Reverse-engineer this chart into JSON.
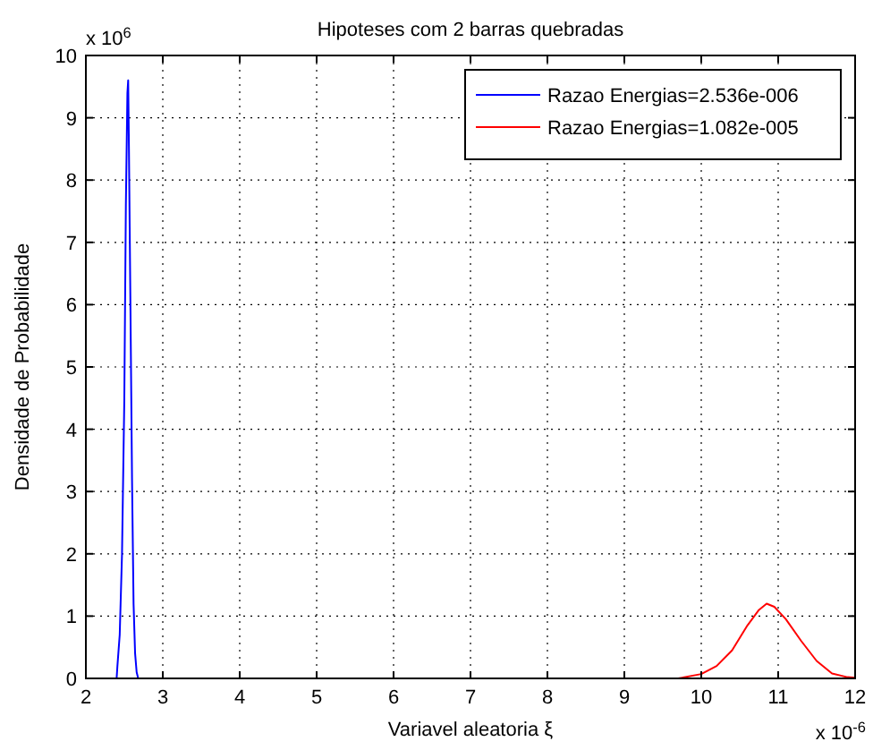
{
  "chart_data": {
    "type": "line",
    "title": "Hipoteses com 2 barras quebradas",
    "xlabel": "Variavel aleatoria ξ",
    "ylabel": "Densidade de Probabilidade",
    "annotations": [
      "x 10$^{6}$",
      "x 10$^{-6}$"
    ],
    "xlim": [
      2,
      12
    ],
    "xticks": [
      2,
      3,
      4,
      5,
      6,
      7,
      8,
      9,
      10,
      11,
      12
    ],
    "ylim": [
      0,
      10
    ],
    "yticks": [
      0,
      1,
      2,
      3,
      4,
      5,
      6,
      7,
      8,
      9,
      10
    ],
    "grid": true,
    "legend": "top right",
    "line_style": "solid",
    "series": [
      {
        "name": "Razao Energias=2.536e-006",
        "color": "#0000ff",
        "x": [
          2.4,
          2.41,
          2.44,
          2.47,
          2.5,
          2.52,
          2.54,
          2.55,
          2.56,
          2.58,
          2.6,
          2.62,
          2.64,
          2.66,
          2.68
        ],
        "values": [
          0,
          0.2,
          0.7,
          2.0,
          4.5,
          7.6,
          9.4,
          9.6,
          8.5,
          5.9,
          3.2,
          1.2,
          0.4,
          0.1,
          0
        ]
      },
      {
        "name": "Razao Energias=1.082e-005",
        "color": "#ff0000",
        "x": [
          9.7,
          10.0,
          10.2,
          10.4,
          10.6,
          10.75,
          10.85,
          10.95,
          11.1,
          11.3,
          11.5,
          11.7,
          11.9,
          12.0
        ],
        "values": [
          0,
          0.07,
          0.2,
          0.45,
          0.85,
          1.1,
          1.2,
          1.15,
          0.95,
          0.6,
          0.28,
          0.08,
          0.02,
          0.01
        ]
      }
    ]
  }
}
